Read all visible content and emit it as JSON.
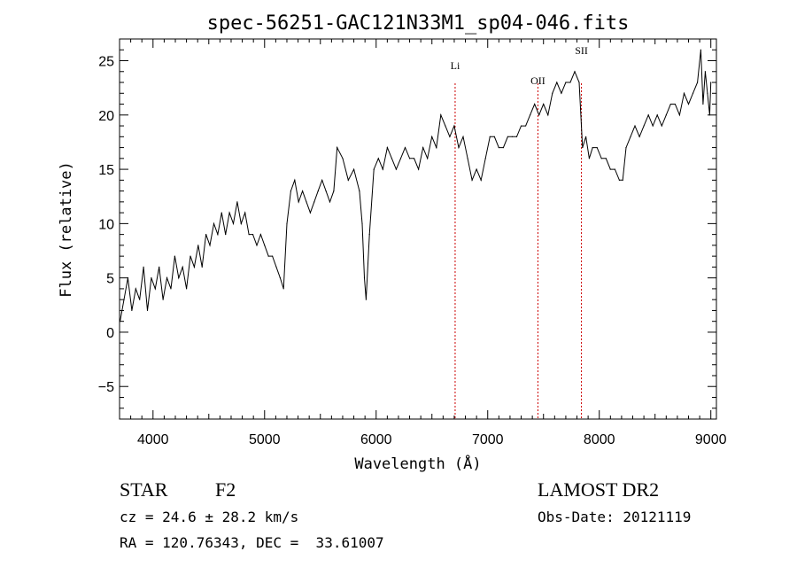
{
  "chart_data": {
    "type": "line",
    "title": "spec-56251-GAC121N33M1_sp04-046.fits",
    "xlabel": "Wavelength (Å)",
    "ylabel": "Flux (relative)",
    "xlim": [
      3700,
      9050
    ],
    "ylim": [
      -8,
      27
    ],
    "x_ticks": [
      4000,
      5000,
      6000,
      7000,
      8000,
      9000
    ],
    "y_ticks": [
      -5,
      0,
      5,
      10,
      15,
      20,
      25
    ],
    "series": [
      {
        "color": "#000000",
        "x": [
          3705,
          3740,
          3775,
          3810,
          3845,
          3880,
          3915,
          3950,
          3985,
          4020,
          4055,
          4090,
          4125,
          4160,
          4195,
          4230,
          4265,
          4300,
          4335,
          4370,
          4405,
          4440,
          4475,
          4510,
          4545,
          4580,
          4615,
          4650,
          4685,
          4720,
          4755,
          4790,
          4825,
          4860,
          4895,
          4930,
          4965,
          5000,
          5035,
          5070,
          5105,
          5140,
          5170,
          5200,
          5235,
          5270,
          5305,
          5340,
          5375,
          5410,
          5445,
          5480,
          5515,
          5550,
          5585,
          5620,
          5650,
          5700,
          5750,
          5800,
          5850,
          5875,
          5895,
          5910,
          5940,
          5980,
          6020,
          6060,
          6100,
          6140,
          6180,
          6220,
          6260,
          6300,
          6340,
          6380,
          6420,
          6460,
          6500,
          6540,
          6580,
          6620,
          6660,
          6700,
          6740,
          6780,
          6820,
          6860,
          6900,
          6940,
          6980,
          7020,
          7060,
          7100,
          7140,
          7180,
          7220,
          7260,
          7300,
          7340,
          7380,
          7420,
          7460,
          7500,
          7540,
          7580,
          7620,
          7660,
          7700,
          7740,
          7780,
          7820,
          7850,
          7880,
          7910,
          7940,
          7980,
          8020,
          8060,
          8100,
          8140,
          8180,
          8210,
          8240,
          8280,
          8320,
          8360,
          8400,
          8440,
          8480,
          8520,
          8560,
          8600,
          8640,
          8680,
          8720,
          8760,
          8800,
          8840,
          8880,
          8910,
          8930,
          8950,
          8970,
          8990,
          9000
        ],
        "y": [
          1,
          3,
          5,
          2,
          4,
          3,
          6,
          2,
          5,
          4,
          6,
          3,
          5,
          4,
          7,
          5,
          6,
          4,
          7,
          6,
          8,
          6,
          9,
          8,
          10,
          9,
          11,
          9,
          11,
          10,
          12,
          10,
          11,
          9,
          9,
          8,
          9,
          8,
          7,
          7,
          6,
          5,
          4,
          10,
          13,
          14,
          12,
          13,
          12,
          11,
          12,
          13,
          14,
          13,
          12,
          13,
          17,
          16,
          14,
          15,
          13,
          10,
          5,
          3,
          9,
          15,
          16,
          15,
          17,
          16,
          15,
          16,
          17,
          16,
          16,
          15,
          17,
          16,
          18,
          17,
          20,
          19,
          18,
          19,
          17,
          18,
          16,
          14,
          15,
          14,
          16,
          18,
          18,
          17,
          17,
          18,
          18,
          18,
          19,
          19,
          20,
          21,
          20,
          21,
          20,
          22,
          23,
          22,
          23,
          23,
          24,
          23,
          17,
          18,
          16,
          17,
          17,
          16,
          16,
          15,
          15,
          14,
          14,
          17,
          18,
          19,
          18,
          19,
          20,
          19,
          20,
          19,
          20,
          21,
          21,
          20,
          22,
          21,
          22,
          23,
          26,
          21,
          24,
          22,
          20,
          23
        ]
      }
    ],
    "annotations": [
      {
        "label": "Li",
        "x": 6708
      },
      {
        "label": "OII",
        "x": 7450
      },
      {
        "label": "SII",
        "x": 7840
      }
    ]
  },
  "info": {
    "object_type": "STAR",
    "subclass": "F2",
    "survey": "LAMOST DR2",
    "cz_line": "cz = 24.6 ± 28.2 km/s",
    "obs_date_line": "Obs-Date: 20121119",
    "radec_line": "RA = 120.76343, DEC =  33.61007"
  }
}
